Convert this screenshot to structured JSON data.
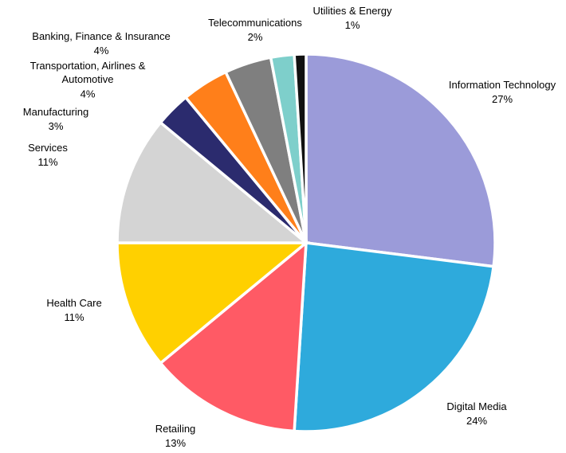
{
  "chart_data": {
    "type": "pie",
    "categories": [
      "Information Technology",
      "Digital Media",
      "Retailing",
      "Health Care",
      "Services",
      "Manufacturing",
      "Transportation, Airlines & Automotive",
      "Banking, Finance & Insurance",
      "Telecommunications",
      "Utilities & Energy"
    ],
    "values": [
      27,
      24,
      13,
      11,
      11,
      3,
      4,
      4,
      2,
      1
    ],
    "value_labels": [
      "27%",
      "24%",
      "13%",
      "11%",
      "11%",
      "3%",
      "4%",
      "4%",
      "2%",
      "1%"
    ],
    "colors": [
      "#9b9bd9",
      "#2eaadc",
      "#ff5a65",
      "#ffd000",
      "#d4d4d4",
      "#2b2b6e",
      "#ff7f1a",
      "#7f7f7f",
      "#7ecfcb",
      "#111111"
    ]
  }
}
